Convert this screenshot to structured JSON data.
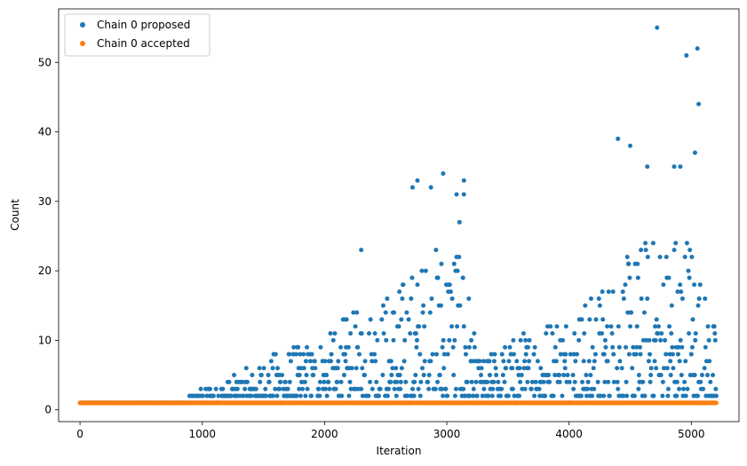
{
  "chart_data": {
    "type": "scatter",
    "title": "",
    "xlabel": "Iteration",
    "ylabel": "Count",
    "xlim": [
      -175,
      5390
    ],
    "ylim": [
      -1.7,
      57.7
    ],
    "xticks": [
      "0",
      "1000",
      "2000",
      "3000",
      "4000",
      "5000"
    ],
    "yticks": [
      "0",
      "10",
      "20",
      "30",
      "40",
      "50"
    ],
    "grid": false,
    "legend_position": "top-left",
    "series": [
      {
        "name": "Chain 0 proposed",
        "color": "#1f77b4",
        "description": "values scattered between 1 and 55 over iterations 0-5200; always 1 before ~900, grows to peaks near 3000 and 4700-5100",
        "max_iteration": 5205,
        "notable_points": [
          {
            "x": 2720,
            "y": 32
          },
          {
            "x": 2760,
            "y": 33
          },
          {
            "x": 2870,
            "y": 32
          },
          {
            "x": 2970,
            "y": 34
          },
          {
            "x": 3140,
            "y": 33
          },
          {
            "x": 3080,
            "y": 31
          },
          {
            "x": 3140,
            "y": 31
          },
          {
            "x": 2300,
            "y": 23
          },
          {
            "x": 4400,
            "y": 39
          },
          {
            "x": 4500,
            "y": 38
          },
          {
            "x": 4720,
            "y": 55
          },
          {
            "x": 4960,
            "y": 51
          },
          {
            "x": 5050,
            "y": 52
          },
          {
            "x": 5060,
            "y": 44
          },
          {
            "x": 5030,
            "y": 37
          },
          {
            "x": 4860,
            "y": 35
          },
          {
            "x": 4640,
            "y": 35
          },
          {
            "x": 4910,
            "y": 35
          }
        ]
      },
      {
        "name": "Chain 0 accepted",
        "color": "#ff7f0e",
        "description": "constant value 1 for every iteration",
        "value": 1,
        "max_iteration": 5205
      }
    ]
  }
}
